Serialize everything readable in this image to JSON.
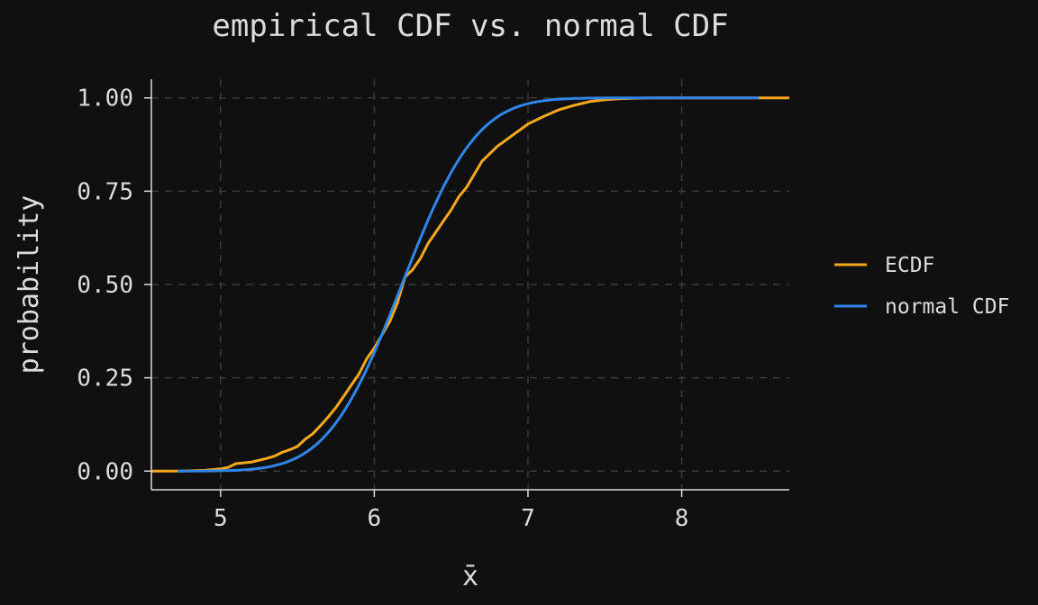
{
  "chart_data": {
    "type": "line",
    "title": "empirical CDF vs. normal CDF",
    "xlabel": "x̄",
    "ylabel": "probability",
    "xlim": [
      4.55,
      8.7
    ],
    "ylim": [
      -0.05,
      1.05
    ],
    "xticks": [
      5,
      6,
      7,
      8
    ],
    "xtick_labels": [
      "5",
      "6",
      "7",
      "8"
    ],
    "yticks": [
      0,
      0.25,
      0.5,
      0.75,
      1
    ],
    "ytick_labels": [
      "0.00",
      "0.25",
      "0.50",
      "0.75",
      "1.00"
    ],
    "grid": true,
    "legend_position": "right",
    "series": [
      {
        "name": "ECDF",
        "color": "#f5a81c",
        "x": [
          4.55,
          4.75,
          4.9,
          5.0,
          5.05,
          5.1,
          5.2,
          5.3,
          5.35,
          5.4,
          5.45,
          5.5,
          5.55,
          5.6,
          5.65,
          5.7,
          5.75,
          5.8,
          5.85,
          5.9,
          5.95,
          6.0,
          6.05,
          6.1,
          6.15,
          6.2,
          6.25,
          6.3,
          6.35,
          6.4,
          6.45,
          6.5,
          6.55,
          6.6,
          6.65,
          6.7,
          6.75,
          6.8,
          6.85,
          6.9,
          6.95,
          7.0,
          7.1,
          7.2,
          7.3,
          7.4,
          7.5,
          7.6,
          7.7,
          7.8,
          8.0,
          8.5,
          8.7
        ],
        "y": [
          0.0,
          0.0,
          0.002,
          0.006,
          0.01,
          0.02,
          0.024,
          0.034,
          0.04,
          0.05,
          0.057,
          0.066,
          0.085,
          0.1,
          0.122,
          0.145,
          0.17,
          0.2,
          0.23,
          0.26,
          0.3,
          0.33,
          0.365,
          0.4,
          0.45,
          0.52,
          0.54,
          0.57,
          0.61,
          0.64,
          0.67,
          0.7,
          0.735,
          0.76,
          0.795,
          0.83,
          0.85,
          0.87,
          0.885,
          0.9,
          0.915,
          0.93,
          0.95,
          0.968,
          0.98,
          0.99,
          0.995,
          0.998,
          0.999,
          1.0,
          1.0,
          1.0,
          1.0
        ]
      },
      {
        "name": "normal CDF",
        "color": "#2f86e8",
        "mu": 6.18,
        "sigma": 0.38,
        "x_range": [
          4.72,
          8.5
        ]
      }
    ]
  }
}
